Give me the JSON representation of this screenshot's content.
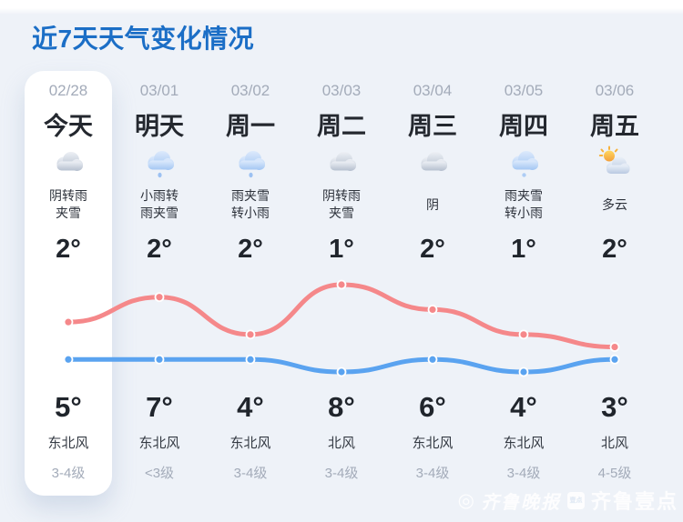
{
  "page": {
    "title": "近7天天气变化情况"
  },
  "colors": {
    "background": "#eef2f8",
    "title_blue": "#1b6ec6",
    "today_card": "#ffffff",
    "high_line_red": "#f5888a",
    "low_line_blue": "#5aa3f0",
    "muted_gray": "#a3abb9"
  },
  "days": [
    {
      "date": "02/28",
      "label": "今天",
      "icon": "cloud-overcast",
      "desc_line1": "阴转雨",
      "desc_line2": "夹雪",
      "low_temp": "2°",
      "high_temp": "5°",
      "wind": "东北风",
      "wind_level": "3-4级"
    },
    {
      "date": "03/01",
      "label": "明天",
      "icon": "cloud-rain",
      "desc_line1": "小雨转",
      "desc_line2": "雨夹雪",
      "low_temp": "2°",
      "high_temp": "7°",
      "wind": "东北风",
      "wind_level": "<3级"
    },
    {
      "date": "03/02",
      "label": "周一",
      "icon": "cloud-rain",
      "desc_line1": "雨夹雪",
      "desc_line2": "转小雨",
      "low_temp": "2°",
      "high_temp": "4°",
      "wind": "东北风",
      "wind_level": "3-4级"
    },
    {
      "date": "03/03",
      "label": "周二",
      "icon": "cloud-overcast",
      "desc_line1": "阴转雨",
      "desc_line2": "夹雪",
      "low_temp": "1°",
      "high_temp": "8°",
      "wind": "北风",
      "wind_level": "3-4级"
    },
    {
      "date": "03/04",
      "label": "周三",
      "icon": "cloud-overcast",
      "desc_line1": "阴",
      "desc_line2": "",
      "low_temp": "2°",
      "high_temp": "6°",
      "wind": "东北风",
      "wind_level": "3-4级"
    },
    {
      "date": "03/05",
      "label": "周四",
      "icon": "cloud-snow",
      "desc_line1": "雨夹雪",
      "desc_line2": "转小雨",
      "low_temp": "1°",
      "high_temp": "4°",
      "wind": "东北风",
      "wind_level": "3-4级"
    },
    {
      "date": "03/06",
      "label": "周五",
      "icon": "sun-cloud",
      "desc_line1": "多云",
      "desc_line2": "",
      "low_temp": "2°",
      "high_temp": "3°",
      "wind": "北风",
      "wind_level": "4-5级"
    }
  ],
  "chart_data": {
    "type": "line",
    "categories": [
      "02/28",
      "03/01",
      "03/02",
      "03/03",
      "03/04",
      "03/05",
      "03/06"
    ],
    "series": [
      {
        "name": "high",
        "color": "#f5888a",
        "values": [
          5,
          7,
          4,
          8,
          6,
          4,
          3
        ]
      },
      {
        "name": "low",
        "color": "#5aa3f0",
        "values": [
          2,
          2,
          2,
          1,
          2,
          1,
          2
        ]
      }
    ],
    "ylim": [
      1,
      8
    ],
    "grid": false,
    "legend": "none",
    "title": "",
    "xlabel": "",
    "ylabel": ""
  },
  "watermark": {
    "press_name": "齐鲁晚报",
    "badge_text": "壹点",
    "app_name": "齐鲁壹点"
  }
}
